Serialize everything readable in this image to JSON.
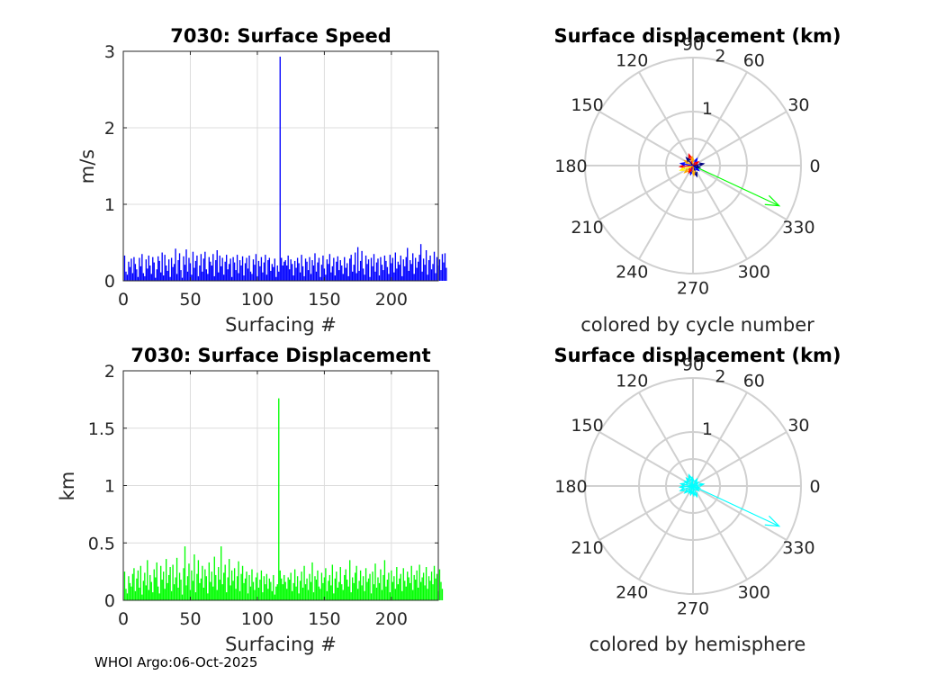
{
  "footer": "WHOI Argo:06-Oct-2025",
  "chart_data": [
    {
      "type": "bar",
      "title": "7030: Surface Speed",
      "xlabel": "Surfacing #",
      "ylabel": "m/s",
      "xlim": [
        0,
        235
      ],
      "ylim": [
        0,
        3
      ],
      "xticks": [
        0,
        50,
        100,
        150,
        200
      ],
      "yticks": [
        0,
        1,
        2,
        3
      ],
      "xtick_labels": [
        "0",
        "50",
        "100",
        "150",
        "200"
      ],
      "ytick_labels": [
        "0",
        "1",
        "2",
        "3"
      ],
      "grid": true,
      "color": "#0000ff",
      "x_start": 1,
      "values": [
        0.33,
        0.12,
        0.08,
        0.25,
        0.18,
        0.29,
        0.1,
        0.31,
        0.22,
        0.15,
        0.05,
        0.3,
        0.19,
        0.35,
        0.1,
        0.06,
        0.28,
        0.16,
        0.33,
        0.2,
        0.09,
        0.31,
        0.24,
        0.04,
        0.15,
        0.32,
        0.26,
        0.11,
        0.37,
        0.07,
        0.34,
        0.2,
        0.13,
        0.28,
        0.05,
        0.3,
        0.18,
        0.22,
        0.42,
        0.09,
        0.27,
        0.36,
        0.14,
        0.04,
        0.32,
        0.21,
        0.41,
        0.12,
        0.3,
        0.23,
        0.08,
        0.38,
        0.17,
        0.26,
        0.33,
        0.06,
        0.2,
        0.35,
        0.12,
        0.29,
        0.38,
        0.15,
        0.09,
        0.31,
        0.25,
        0.2,
        0.35,
        0.06,
        0.27,
        0.4,
        0.11,
        0.33,
        0.19,
        0.3,
        0.08,
        0.25,
        0.34,
        0.15,
        0.22,
        0.29,
        0.05,
        0.31,
        0.24,
        0.14,
        0.34,
        0.1,
        0.27,
        0.2,
        0.32,
        0.07,
        0.23,
        0.3,
        0.16,
        0.33,
        0.12,
        0.09,
        0.28,
        0.21,
        0.35,
        0.06,
        0.26,
        0.19,
        0.31,
        0.11,
        0.24,
        0.34,
        0.08,
        0.27,
        0.3,
        0.13,
        0.22,
        0.18,
        0.29,
        0.05,
        0.2,
        0.12,
        2.93,
        0.3,
        0.2,
        0.25,
        0.27,
        0.2,
        0.33,
        0.15,
        0.28,
        0.22,
        0.07,
        0.26,
        0.17,
        0.3,
        0.23,
        0.11,
        0.34,
        0.19,
        0.06,
        0.29,
        0.25,
        0.14,
        0.31,
        0.09,
        0.27,
        0.2,
        0.36,
        0.12,
        0.24,
        0.3,
        0.05,
        0.21,
        0.33,
        0.16,
        0.08,
        0.28,
        0.22,
        0.35,
        0.11,
        0.19,
        0.3,
        0.07,
        0.25,
        0.32,
        0.14,
        0.27,
        0.2,
        0.09,
        0.31,
        0.17,
        0.23,
        0.06,
        0.29,
        0.34,
        0.12,
        0.21,
        0.37,
        0.1,
        0.44,
        0.13,
        0.26,
        0.39,
        0.16,
        0.08,
        0.33,
        0.22,
        0.28,
        0.05,
        0.3,
        0.19,
        0.35,
        0.12,
        0.24,
        0.29,
        0.07,
        0.31,
        0.21,
        0.14,
        0.33,
        0.26,
        0.18,
        0.09,
        0.34,
        0.23,
        0.3,
        0.11,
        0.37,
        0.16,
        0.25,
        0.21,
        0.33,
        0.06,
        0.28,
        0.19,
        0.31,
        0.43,
        0.13,
        0.27,
        0.22,
        0.36,
        0.09,
        0.3,
        0.17,
        0.25,
        0.34,
        0.48,
        0.12,
        0.29,
        0.21,
        0.4,
        0.08,
        0.27,
        0.33,
        0.15,
        0.22,
        0.38,
        0.1,
        0.31,
        0.2,
        0.28,
        0.14,
        0.35,
        0.24,
        0.36,
        0.17
      ]
    },
    {
      "type": "bar",
      "title": "7030: Surface Displacement",
      "xlabel": "Surfacing #",
      "ylabel": "km",
      "xlim": [
        0,
        235
      ],
      "ylim": [
        0,
        2
      ],
      "xticks": [
        0,
        50,
        100,
        150,
        200
      ],
      "yticks": [
        0,
        0.5,
        1,
        1.5,
        2
      ],
      "xtick_labels": [
        "0",
        "50",
        "100",
        "150",
        "200"
      ],
      "ytick_labels": [
        "0",
        "0.5",
        "1",
        "1.5",
        "2"
      ],
      "grid": true,
      "color": "#00ff00",
      "x_start": 1,
      "values": [
        0.25,
        0.1,
        0.06,
        0.21,
        0.15,
        0.12,
        0.23,
        0.28,
        0.08,
        0.19,
        0.26,
        0.11,
        0.3,
        0.05,
        0.17,
        0.24,
        0.13,
        0.35,
        0.09,
        0.22,
        0.16,
        0.07,
        0.27,
        0.2,
        0.33,
        0.12,
        0.06,
        0.3,
        0.18,
        0.25,
        0.1,
        0.36,
        0.15,
        0.22,
        0.29,
        0.08,
        0.31,
        0.14,
        0.2,
        0.37,
        0.11,
        0.24,
        0.18,
        0.05,
        0.28,
        0.47,
        0.13,
        0.21,
        0.32,
        0.09,
        0.26,
        0.17,
        0.4,
        0.07,
        0.23,
        0.35,
        0.15,
        0.19,
        0.3,
        0.11,
        0.27,
        0.21,
        0.06,
        0.33,
        0.16,
        0.25,
        0.12,
        0.38,
        0.22,
        0.09,
        0.29,
        0.18,
        0.47,
        0.14,
        0.24,
        0.31,
        0.07,
        0.2,
        0.36,
        0.13,
        0.26,
        0.17,
        0.28,
        0.1,
        0.21,
        0.34,
        0.08,
        0.23,
        0.3,
        0.15,
        0.19,
        0.25,
        0.06,
        0.22,
        0.12,
        0.27,
        0.16,
        0.09,
        0.2,
        0.24,
        0.11,
        0.18,
        0.26,
        0.07,
        0.21,
        0.14,
        0.23,
        0.1,
        0.19,
        0.16,
        0.08,
        0.22,
        0.05,
        0.12,
        0.14,
        1.76,
        0.26,
        0.19,
        0.14,
        0.22,
        0.16,
        0.1,
        0.2,
        0.18,
        0.24,
        0.08,
        0.15,
        0.27,
        0.12,
        0.21,
        0.06,
        0.17,
        0.25,
        0.11,
        0.3,
        0.14,
        0.19,
        0.09,
        0.23,
        0.16,
        0.33,
        0.07,
        0.21,
        0.18,
        0.26,
        0.12,
        0.1,
        0.24,
        0.15,
        0.2,
        0.28,
        0.08,
        0.17,
        0.22,
        0.13,
        0.31,
        0.06,
        0.19,
        0.25,
        0.11,
        0.16,
        0.29,
        0.14,
        0.09,
        0.22,
        0.27,
        0.18,
        0.12,
        0.35,
        0.07,
        0.2,
        0.15,
        0.24,
        0.3,
        0.1,
        0.17,
        0.26,
        0.13,
        0.21,
        0.08,
        0.28,
        0.16,
        0.19,
        0.23,
        0.06,
        0.25,
        0.14,
        0.32,
        0.11,
        0.2,
        0.15,
        0.27,
        0.09,
        0.22,
        0.35,
        0.12,
        0.18,
        0.24,
        0.07,
        0.26,
        0.16,
        0.21,
        0.1,
        0.29,
        0.14,
        0.19,
        0.23,
        0.08,
        0.28,
        0.17,
        0.12,
        0.25,
        0.2,
        0.15,
        0.3,
        0.09,
        0.22,
        0.18,
        0.26,
        0.11,
        0.31,
        0.16,
        0.2,
        0.24,
        0.13,
        0.29,
        0.1,
        0.21,
        0.17,
        0.25,
        0.14,
        0.3,
        0.19,
        0.23,
        0.08,
        0.27,
        0.16,
        0.1
      ]
    },
    {
      "type": "polar",
      "title": "Surface displacement (km)",
      "caption": "colored by cycle number",
      "rlim": [
        0,
        2
      ],
      "rticks": [
        1,
        2
      ],
      "rtick_labels": [
        "1",
        "2"
      ],
      "theta_ticks": [
        0,
        30,
        60,
        90,
        120,
        150,
        180,
        210,
        240,
        270,
        300,
        330
      ],
      "theta_tick_labels": [
        "0",
        "30",
        "60",
        "90",
        "120",
        "150",
        "180",
        "210",
        "240",
        "270",
        "300",
        "330"
      ],
      "color_scale": [
        "#000080",
        "#0000ff",
        "#ff0000",
        "#ffa500",
        "#ffff00"
      ],
      "arrows": [
        {
          "r": 1.76,
          "theta": 335,
          "color": "#00ff00"
        },
        {
          "r": 0.2,
          "theta": 10,
          "color": "#000080"
        },
        {
          "r": 0.15,
          "theta": 60,
          "color": "#0000ff"
        },
        {
          "r": 0.22,
          "theta": 110,
          "color": "#ff0000"
        },
        {
          "r": 0.18,
          "theta": 150,
          "color": "#ffa500"
        },
        {
          "r": 0.24,
          "theta": 185,
          "color": "#ff0000"
        },
        {
          "r": 0.2,
          "theta": 220,
          "color": "#ffa500"
        },
        {
          "r": 0.17,
          "theta": 255,
          "color": "#0000ff"
        },
        {
          "r": 0.21,
          "theta": 290,
          "color": "#000080"
        },
        {
          "r": 0.14,
          "theta": 320,
          "color": "#0000ff"
        },
        {
          "r": 0.25,
          "theta": 200,
          "color": "#ffff00"
        },
        {
          "r": 0.16,
          "theta": 95,
          "color": "#ffa500"
        },
        {
          "r": 0.19,
          "theta": 130,
          "color": "#000080"
        },
        {
          "r": 0.12,
          "theta": 35,
          "color": "#ff0000"
        },
        {
          "r": 0.23,
          "theta": 170,
          "color": "#0000ff"
        },
        {
          "r": 0.15,
          "theta": 240,
          "color": "#ff0000"
        },
        {
          "r": 0.18,
          "theta": 275,
          "color": "#ffa500"
        },
        {
          "r": 0.13,
          "theta": 345,
          "color": "#000080"
        }
      ]
    },
    {
      "type": "polar",
      "title": "Surface displacement (km)",
      "caption": "colored by hemisphere",
      "rlim": [
        0,
        2
      ],
      "rticks": [
        1,
        2
      ],
      "rtick_labels": [
        "1",
        "2"
      ],
      "theta_ticks": [
        0,
        30,
        60,
        90,
        120,
        150,
        180,
        210,
        240,
        270,
        300,
        330
      ],
      "theta_tick_labels": [
        "0",
        "30",
        "60",
        "90",
        "120",
        "150",
        "180",
        "210",
        "240",
        "270",
        "300",
        "330"
      ],
      "arrows": [
        {
          "r": 1.76,
          "theta": 335,
          "color": "#00ffff"
        },
        {
          "r": 0.2,
          "theta": 10,
          "color": "#00ffff"
        },
        {
          "r": 0.15,
          "theta": 60,
          "color": "#00ffff"
        },
        {
          "r": 0.22,
          "theta": 110,
          "color": "#00ffff"
        },
        {
          "r": 0.18,
          "theta": 150,
          "color": "#00ffff"
        },
        {
          "r": 0.24,
          "theta": 185,
          "color": "#00ffff"
        },
        {
          "r": 0.2,
          "theta": 220,
          "color": "#00ffff"
        },
        {
          "r": 0.17,
          "theta": 255,
          "color": "#00ffff"
        },
        {
          "r": 0.21,
          "theta": 290,
          "color": "#00ffff"
        },
        {
          "r": 0.14,
          "theta": 320,
          "color": "#00ffff"
        },
        {
          "r": 0.25,
          "theta": 200,
          "color": "#00ffff"
        },
        {
          "r": 0.16,
          "theta": 95,
          "color": "#00ffff"
        },
        {
          "r": 0.19,
          "theta": 130,
          "color": "#00ffff"
        },
        {
          "r": 0.12,
          "theta": 35,
          "color": "#00ffff"
        },
        {
          "r": 0.23,
          "theta": 170,
          "color": "#00ffff"
        },
        {
          "r": 0.15,
          "theta": 240,
          "color": "#00ffff"
        },
        {
          "r": 0.18,
          "theta": 275,
          "color": "#00ffff"
        },
        {
          "r": 0.13,
          "theta": 345,
          "color": "#00ffff"
        }
      ]
    }
  ]
}
